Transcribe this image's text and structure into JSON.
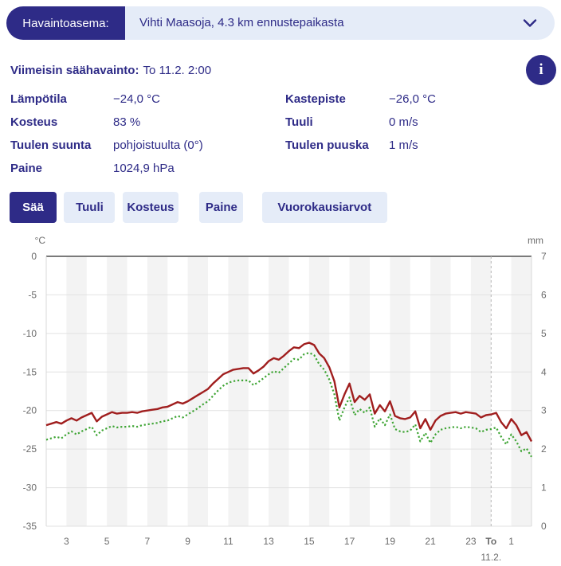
{
  "colors": {
    "accent_indigo": "#2e2b87",
    "light_blue_bg": "#e5ecf8",
    "temperature_red": "#a01e1e",
    "dew_point_green": "#3fa535",
    "stripe_gray": "#f3f3f3",
    "grid_gray": "#e2e2e2",
    "axis_dark_gray": "#7a7a7a",
    "tick_text_gray": "#6b6b6b"
  },
  "station_selector": {
    "label": "Havaintoasema:",
    "value": "Vihti Maasoja, 4.3 km ennustepaikasta"
  },
  "latest_observation": {
    "label": "Viimeisin säähavainto:",
    "value": "To 11.2. 2:00"
  },
  "info_icon_glyph": "i",
  "observations": {
    "col1": [
      {
        "label": "Lämpötila",
        "value": "−24,0 °C"
      },
      {
        "label": "Kosteus",
        "value": "83 %"
      },
      {
        "label": "Tuulen suunta",
        "value": "pohjoistuulta (0°)"
      },
      {
        "label": "Paine",
        "value": "1024,9 hPa"
      }
    ],
    "col2": [
      {
        "label": "Kastepiste",
        "value": "−26,0 °C"
      },
      {
        "label": "Tuuli",
        "value": "0 m/s"
      },
      {
        "label": "Tuulen puuska",
        "value": "1 m/s"
      }
    ]
  },
  "tabs": [
    {
      "label": "Sää",
      "active": true
    },
    {
      "label": "Tuuli",
      "active": false
    },
    {
      "label": "Kosteus",
      "active": false
    },
    {
      "label": "Paine",
      "active": false
    },
    {
      "label": "Vuorokausiarvot",
      "active": false
    }
  ],
  "chart_data": {
    "type": "line",
    "title": "",
    "grid": true,
    "legend": "none",
    "left_axis": {
      "label": "°C",
      "min": -35,
      "max": 0,
      "ticks": [
        0,
        -5,
        -10,
        -15,
        -20,
        -25,
        -30,
        -35
      ]
    },
    "right_axis": {
      "label": "mm",
      "min": 0,
      "max": 7,
      "ticks": [
        7,
        6,
        5,
        4,
        3,
        2,
        1,
        0
      ]
    },
    "x_axis": {
      "range": [
        2,
        26
      ],
      "midnight_t": 24,
      "shaded_hour_starts": [
        3,
        5,
        7,
        9,
        11,
        13,
        15,
        17,
        19,
        21,
        23,
        25
      ],
      "ticks": [
        {
          "t": 3,
          "label": "3"
        },
        {
          "t": 5,
          "label": "5"
        },
        {
          "t": 7,
          "label": "7"
        },
        {
          "t": 9,
          "label": "9"
        },
        {
          "t": 11,
          "label": "11"
        },
        {
          "t": 13,
          "label": "13"
        },
        {
          "t": 15,
          "label": "15"
        },
        {
          "t": 17,
          "label": "17"
        },
        {
          "t": 19,
          "label": "19"
        },
        {
          "t": 21,
          "label": "21"
        },
        {
          "t": 23,
          "label": "23"
        },
        {
          "t": 24,
          "label": "To",
          "bold": true,
          "sublabel": "11.2."
        },
        {
          "t": 25,
          "label": "1"
        }
      ]
    },
    "series": [
      {
        "name": "Lämpötila (°C)",
        "color": "#a01e1e",
        "style": "solid",
        "x_start": 2,
        "x_step": 0.25,
        "values": [
          -21.9,
          -21.7,
          -21.5,
          -21.7,
          -21.3,
          -21.0,
          -21.3,
          -20.9,
          -20.6,
          -20.3,
          -21.4,
          -20.8,
          -20.5,
          -20.2,
          -20.4,
          -20.3,
          -20.3,
          -20.2,
          -20.3,
          -20.1,
          -20.0,
          -19.9,
          -19.8,
          -19.6,
          -19.5,
          -19.2,
          -18.9,
          -19.1,
          -18.8,
          -18.4,
          -18.0,
          -17.6,
          -17.2,
          -16.5,
          -15.9,
          -15.3,
          -15.0,
          -14.7,
          -14.6,
          -14.5,
          -14.5,
          -15.2,
          -14.8,
          -14.3,
          -13.6,
          -13.2,
          -13.4,
          -12.9,
          -12.3,
          -11.8,
          -11.9,
          -11.4,
          -11.2,
          -11.5,
          -12.6,
          -13.2,
          -14.4,
          -16.2,
          -19.6,
          -17.9,
          -16.5,
          -18.9,
          -18.1,
          -18.6,
          -17.9,
          -20.4,
          -19.3,
          -20.1,
          -18.8,
          -20.7,
          -21.0,
          -21.1,
          -20.9,
          -20.1,
          -22.3,
          -21.1,
          -22.5,
          -21.3,
          -20.7,
          -20.4,
          -20.3,
          -20.2,
          -20.4,
          -20.2,
          -20.3,
          -20.4,
          -20.9,
          -20.6,
          -20.5,
          -20.3,
          -21.5,
          -22.3,
          -21.1,
          -21.9,
          -23.2,
          -22.8,
          -24.0
        ]
      },
      {
        "name": "Kastepiste (°C)",
        "color": "#3fa535",
        "style": "dotted",
        "x_start": 2,
        "x_step": 0.25,
        "values": [
          -23.8,
          -23.6,
          -23.4,
          -23.6,
          -23.1,
          -22.7,
          -23.1,
          -22.7,
          -22.4,
          -22.1,
          -23.2,
          -22.6,
          -22.3,
          -22.0,
          -22.2,
          -22.1,
          -22.1,
          -22.0,
          -22.1,
          -21.9,
          -21.8,
          -21.7,
          -21.6,
          -21.4,
          -21.3,
          -21.0,
          -20.7,
          -20.9,
          -20.5,
          -20.1,
          -19.7,
          -19.2,
          -18.8,
          -18.1,
          -17.4,
          -16.8,
          -16.4,
          -16.2,
          -16.1,
          -16.1,
          -16.1,
          -16.7,
          -16.3,
          -15.8,
          -15.3,
          -14.9,
          -15.1,
          -14.5,
          -13.9,
          -13.3,
          -13.4,
          -12.7,
          -12.5,
          -12.8,
          -14.0,
          -14.7,
          -16.0,
          -17.9,
          -21.3,
          -19.6,
          -18.3,
          -20.6,
          -19.8,
          -20.3,
          -19.6,
          -22.1,
          -21.0,
          -21.9,
          -20.5,
          -22.4,
          -22.7,
          -22.8,
          -22.6,
          -21.8,
          -24.0,
          -22.9,
          -24.2,
          -23.1,
          -22.5,
          -22.3,
          -22.2,
          -22.1,
          -22.3,
          -22.1,
          -22.2,
          -22.3,
          -22.8,
          -22.5,
          -22.4,
          -22.2,
          -23.4,
          -24.4,
          -23.1,
          -24.0,
          -25.3,
          -24.9,
          -26.0
        ]
      }
    ]
  }
}
